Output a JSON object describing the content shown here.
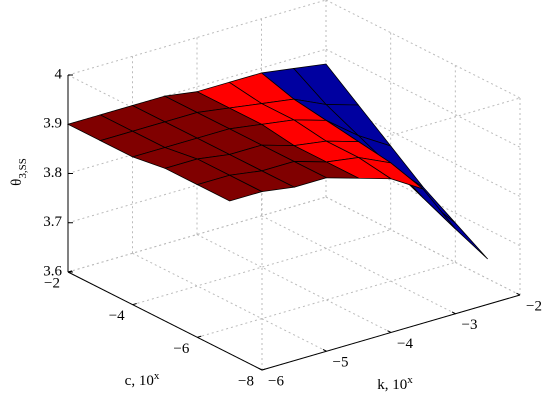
{
  "chart_data": {
    "type": "surface",
    "xlabel": {
      "text": "c, 10",
      "sup": "x"
    },
    "ylabel": {
      "text": "k, 10",
      "sup": "x"
    },
    "zlabel": {
      "text": "θ",
      "sub": "3,SS"
    },
    "xlim": [
      -2,
      -8
    ],
    "ylim": [
      -6,
      -2
    ],
    "zlim": [
      3.6,
      4
    ],
    "xticks": [
      {
        "value": -2,
        "label": "−2"
      },
      {
        "value": -4,
        "label": "−4"
      },
      {
        "value": -6,
        "label": "−6"
      },
      {
        "value": -8,
        "label": "−8"
      }
    ],
    "yticks": [
      {
        "value": -6,
        "label": "−6"
      },
      {
        "value": -5,
        "label": "−5"
      },
      {
        "value": -4,
        "label": "−4"
      },
      {
        "value": -3,
        "label": "−3"
      },
      {
        "value": -2,
        "label": "−2"
      }
    ],
    "zticks": [
      3.6,
      3.7,
      3.8,
      3.9,
      4
    ],
    "grid": true,
    "c": [
      -2,
      -3,
      -4,
      -5,
      -6,
      -7
    ],
    "k": [
      -6,
      -5.5,
      -5,
      -4.5,
      -4,
      -3.5,
      -3,
      -2.5,
      -2
    ],
    "column_colors": [
      "#800000",
      "#800000",
      "#800000",
      "#800000",
      "#ff0000",
      "#ff0000",
      "#0000a0",
      "#0000a0"
    ],
    "z": [
      [
        3.9,
        3.9,
        3.9,
        3.9,
        3.89,
        3.89,
        3.89,
        3.88,
        3.87
      ],
      [
        3.9,
        3.9,
        3.9,
        3.9,
        3.89,
        3.88,
        3.87,
        3.84,
        3.82
      ],
      [
        3.9,
        3.9,
        3.9,
        3.9,
        3.89,
        3.88,
        3.86,
        3.81,
        3.77
      ],
      [
        3.91,
        3.91,
        3.9,
        3.9,
        3.88,
        3.87,
        3.85,
        3.78,
        3.72
      ],
      [
        3.91,
        3.91,
        3.9,
        3.9,
        3.88,
        3.87,
        3.84,
        3.75,
        3.68
      ],
      [
        3.91,
        3.91,
        3.9,
        3.9,
        3.88,
        3.86,
        3.82,
        3.72,
        3.64
      ]
    ]
  }
}
